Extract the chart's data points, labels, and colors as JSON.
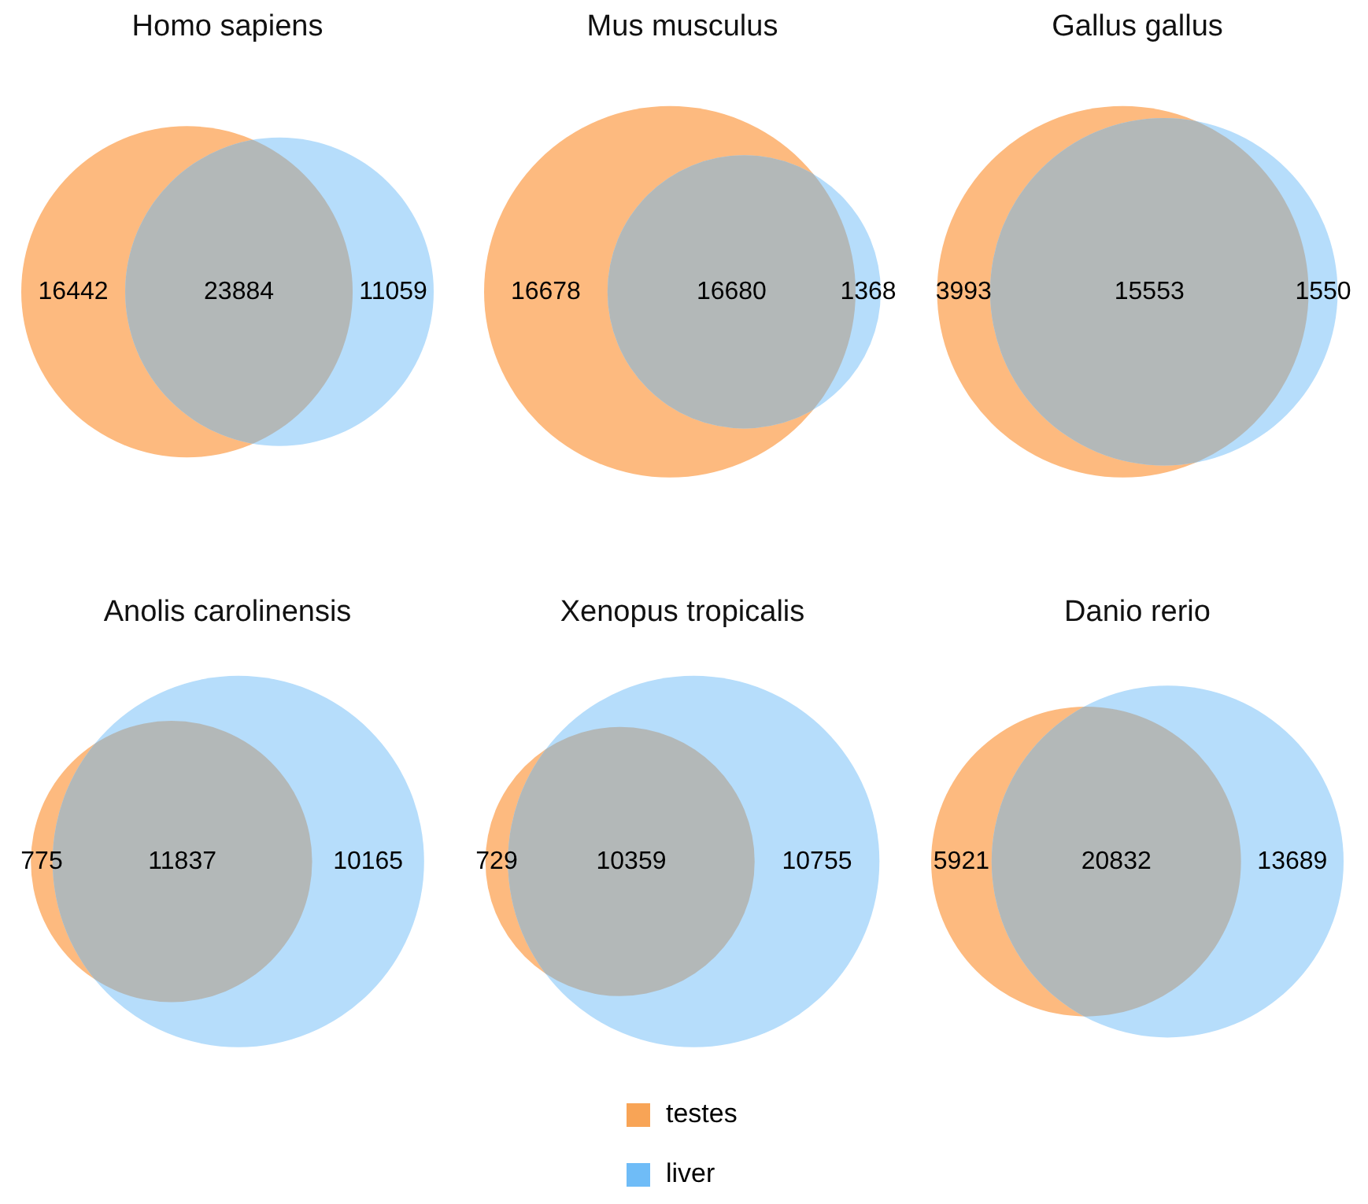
{
  "chart_data": [
    {
      "type": "other",
      "data_labels": true,
      "title": "Homo sapiens",
      "categories": [
        null,
        null,
        null
      ],
      "values": [
        16442,
        23884,
        11059
      ],
      "colors": [
        "#fdba7f",
        "#b3b8b8",
        "#b6ddfb"
      ]
    },
    {
      "type": "other",
      "data_labels": true,
      "title": "Mus musculus",
      "categories": [
        null,
        null,
        null
      ],
      "values": [
        16678,
        16680,
        1368
      ],
      "colors": [
        "#fdba7f",
        "#b3b8b8",
        "#b6ddfb"
      ]
    },
    {
      "type": "other",
      "data_labels": true,
      "title": "Gallus gallus",
      "categories": [
        null,
        null,
        null
      ],
      "values": [
        3993,
        15553,
        1550
      ],
      "colors": [
        "#fdba7f",
        "#b3b8b8",
        "#b6ddfb"
      ]
    },
    {
      "type": "other",
      "data_labels": true,
      "title": "Anolis carolinensis",
      "categories": [
        null,
        null,
        null
      ],
      "values": [
        775,
        11837,
        10165
      ],
      "colors": [
        "#fdba7f",
        "#b3b8b8",
        "#b6ddfb"
      ]
    },
    {
      "type": "other",
      "data_labels": true,
      "title": "Xenopus tropicalis",
      "categories": [
        null,
        null,
        null
      ],
      "values": [
        729,
        10359,
        10755
      ],
      "colors": [
        "#fdba7f",
        "#b3b8b8",
        "#b6ddfb"
      ]
    },
    {
      "type": "other",
      "data_labels": true,
      "title": "Danio rerio",
      "categories": [
        null,
        null,
        null
      ],
      "values": [
        5921,
        20832,
        13689
      ],
      "colors": [
        "#fdba7f",
        "#b3b8b8",
        "#b6ddfb"
      ]
    },
    {
      "type": "other",
      "categories": [
        "testes",
        "liver"
      ],
      "colors": [
        "#f8a456",
        "#6fbcf7"
      ]
    }
  ]
}
